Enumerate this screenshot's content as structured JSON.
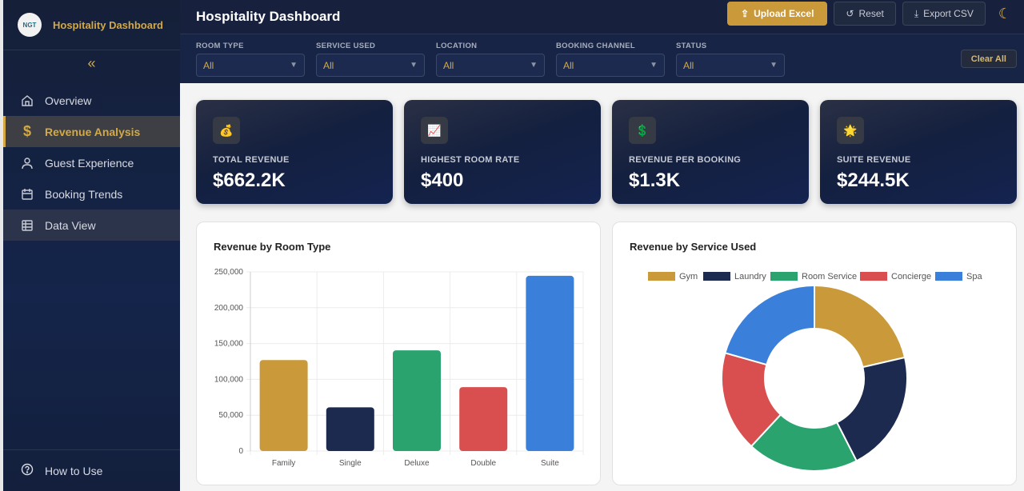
{
  "app": {
    "title": "Hospitality Dashboard",
    "logo_text": "NGT"
  },
  "sidebar": {
    "collapse_icon": "«",
    "items": [
      {
        "label": "Overview",
        "icon": "home-icon"
      },
      {
        "label": "Revenue Analysis",
        "icon": "dollar-icon",
        "active": true
      },
      {
        "label": "Guest Experience",
        "icon": "user-icon"
      },
      {
        "label": "Booking Trends",
        "icon": "calendar-icon"
      },
      {
        "label": "Data View",
        "icon": "table-icon"
      }
    ],
    "footer": {
      "label": "How to Use",
      "icon": "help-circle-icon"
    }
  },
  "header": {
    "title": "Hospitality Dashboard",
    "upload_label": "Upload Excel",
    "reset_label": "Reset",
    "export_label": "Export CSV",
    "theme_icon": "moon-icon"
  },
  "filters": [
    {
      "label": "ROOM TYPE",
      "value": "All"
    },
    {
      "label": "SERVICE USED",
      "value": "All"
    },
    {
      "label": "LOCATION",
      "value": "All"
    },
    {
      "label": "BOOKING CHANNEL",
      "value": "All"
    },
    {
      "label": "STATUS",
      "value": "All"
    }
  ],
  "clear_all_label": "Clear All",
  "kpis": [
    {
      "label": "TOTAL REVENUE",
      "value": "$662.2K",
      "icon": "💰"
    },
    {
      "label": "HIGHEST ROOM RATE",
      "value": "$400",
      "icon": "📈"
    },
    {
      "label": "REVENUE PER BOOKING",
      "value": "$1.3K",
      "icon": "💲"
    },
    {
      "label": "SUITE REVENUE",
      "value": "$244.5K",
      "icon": "🌟"
    }
  ],
  "colors": {
    "gold": "#c9993a",
    "navy": "#1b2a4e",
    "green": "#2ba36f",
    "red": "#d94f4f",
    "blue": "#3a7fd9"
  },
  "chart_data": [
    {
      "type": "bar",
      "title": "Revenue by Room Type",
      "categories": [
        "Family",
        "Single",
        "Deluxe",
        "Double",
        "Suite"
      ],
      "values": [
        127000,
        61000,
        140500,
        89200,
        244500
      ],
      "ylim": [
        0,
        250000
      ],
      "yticks": [
        "250,000",
        "200,000",
        "150,000",
        "100,000",
        "50,000",
        "0"
      ],
      "colors": [
        "#c9993a",
        "#1b2a4e",
        "#2ba36f",
        "#d94f4f",
        "#3a7fd9"
      ],
      "grid": true
    },
    {
      "type": "pie",
      "donut": true,
      "title": "Revenue by Service Used",
      "categories": [
        "Gym",
        "Laundry",
        "Room Service",
        "Concierge",
        "Spa"
      ],
      "values": [
        21.4,
        21.1,
        19.4,
        17.5,
        20.6
      ],
      "colors": [
        "#c9993a",
        "#1b2a4e",
        "#2ba36f",
        "#d94f4f",
        "#3a7fd9"
      ],
      "legend": "top"
    }
  ]
}
